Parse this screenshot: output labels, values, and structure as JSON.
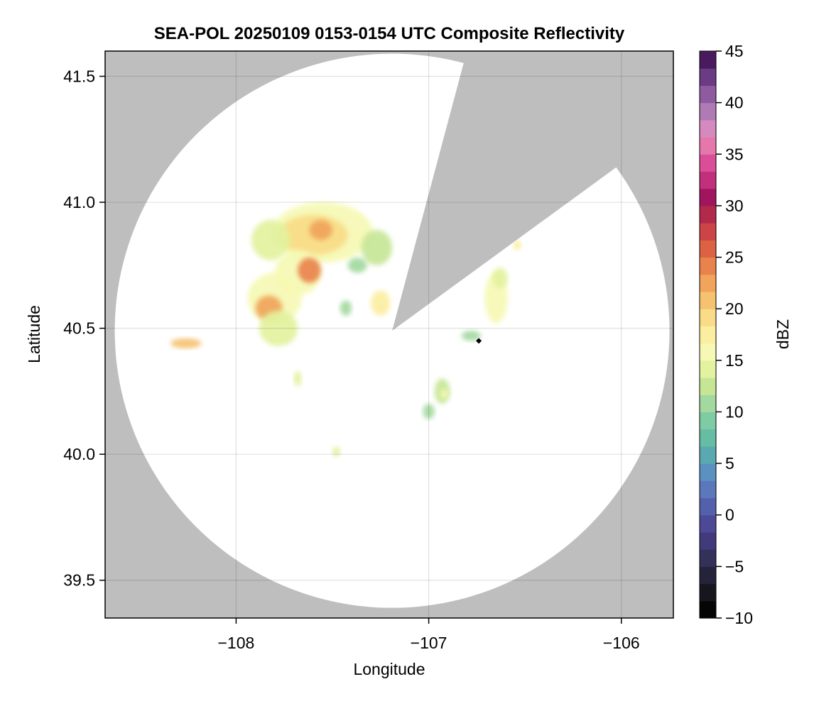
{
  "chart_data": {
    "type": "heatmap",
    "title": "SEA-POL 20250109 0153-0154 UTC Composite Reflectivity",
    "xlabel": "Longitude",
    "ylabel": "Latitude",
    "xlim": [
      -108.68,
      -105.73
    ],
    "ylim": [
      39.35,
      41.6
    ],
    "xticks": [
      -108,
      -107,
      -106
    ],
    "xtick_labels": [
      "−108",
      "−107",
      "−106"
    ],
    "yticks": [
      39.5,
      40.0,
      40.5,
      41.0,
      41.5
    ],
    "ytick_labels": [
      "39.5",
      "40.0",
      "40.5",
      "41.0",
      "41.5"
    ],
    "grid": true,
    "no_data_color": "#bebebe",
    "radar_coverage": {
      "center_lon": -107.19,
      "center_lat": 40.49,
      "range_edge_lon_west": -108.63,
      "range_edge_lat_north": 41.56,
      "blocked_sector_edges": [
        {
          "lon": -106.83,
          "lat": 41.52
        },
        {
          "lon": -106.06,
          "lat": 41.12
        }
      ]
    },
    "colorbar": {
      "label": "dBZ",
      "min": -10,
      "max": 45,
      "ticks": [
        -10,
        -5,
        0,
        5,
        10,
        15,
        20,
        25,
        30,
        35,
        40,
        45
      ],
      "tick_labels": [
        "−10",
        "−5",
        "0",
        "5",
        "10",
        "15",
        "20",
        "25",
        "30",
        "35",
        "40",
        "45"
      ],
      "colors": [
        "#050505",
        "#16161f",
        "#24233a",
        "#33305a",
        "#423a7a",
        "#4c4a97",
        "#5560ad",
        "#5b78bd",
        "#5a91c0",
        "#5aa8b0",
        "#66bda3",
        "#7fcba4",
        "#a3d99f",
        "#c6e696",
        "#e2f29e",
        "#f6f9b4",
        "#fbeea0",
        "#f9dc87",
        "#f5c270",
        "#f0a45c",
        "#e9834d",
        "#dd6244",
        "#cc4445",
        "#b22a4b",
        "#a0155e",
        "#c12f7d",
        "#d94e96",
        "#e577ad",
        "#d48abf",
        "#b07ab5",
        "#8e5b9f",
        "#6b3b86",
        "#4a1a5e"
      ]
    },
    "echoes": [
      {
        "lon": -107.55,
        "lat": 40.88,
        "rlon": 0.26,
        "rlat": 0.12,
        "dbz": 15
      },
      {
        "lon": -107.6,
        "lat": 40.87,
        "rlon": 0.18,
        "rlat": 0.08,
        "dbz": 19
      },
      {
        "lon": -107.56,
        "lat": 40.89,
        "rlon": 0.06,
        "rlat": 0.04,
        "dbz": 23
      },
      {
        "lon": -107.82,
        "lat": 40.85,
        "rlon": 0.1,
        "rlat": 0.08,
        "dbz": 14
      },
      {
        "lon": -107.27,
        "lat": 40.82,
        "rlon": 0.08,
        "rlat": 0.07,
        "dbz": 12
      },
      {
        "lon": -107.37,
        "lat": 40.75,
        "rlon": 0.05,
        "rlat": 0.03,
        "dbz": 10
      },
      {
        "lon": -107.68,
        "lat": 40.72,
        "rlon": 0.12,
        "rlat": 0.09,
        "dbz": 16
      },
      {
        "lon": -107.62,
        "lat": 40.73,
        "rlon": 0.06,
        "rlat": 0.05,
        "dbz": 24
      },
      {
        "lon": -107.8,
        "lat": 40.62,
        "rlon": 0.14,
        "rlat": 0.1,
        "dbz": 16
      },
      {
        "lon": -107.83,
        "lat": 40.58,
        "rlon": 0.07,
        "rlat": 0.05,
        "dbz": 23
      },
      {
        "lon": -107.78,
        "lat": 40.5,
        "rlon": 0.1,
        "rlat": 0.07,
        "dbz": 14
      },
      {
        "lon": -107.25,
        "lat": 40.6,
        "rlon": 0.05,
        "rlat": 0.05,
        "dbz": 17
      },
      {
        "lon": -107.43,
        "lat": 40.58,
        "rlon": 0.03,
        "rlat": 0.03,
        "dbz": 10
      },
      {
        "lon": -108.26,
        "lat": 40.44,
        "rlon": 0.08,
        "rlat": 0.02,
        "dbz": 20
      },
      {
        "lon": -107.68,
        "lat": 40.3,
        "rlon": 0.02,
        "rlat": 0.03,
        "dbz": 14
      },
      {
        "lon": -106.65,
        "lat": 40.62,
        "rlon": 0.06,
        "rlat": 0.1,
        "dbz": 16
      },
      {
        "lon": -106.63,
        "lat": 40.7,
        "rlon": 0.04,
        "rlat": 0.04,
        "dbz": 14
      },
      {
        "lon": -106.54,
        "lat": 40.83,
        "rlon": 0.02,
        "rlat": 0.02,
        "dbz": 18
      },
      {
        "lon": -106.78,
        "lat": 40.47,
        "rlon": 0.05,
        "rlat": 0.02,
        "dbz": 11
      },
      {
        "lon": -106.93,
        "lat": 40.25,
        "rlon": 0.04,
        "rlat": 0.05,
        "dbz": 12
      },
      {
        "lon": -106.92,
        "lat": 40.24,
        "rlon": 0.02,
        "rlat": 0.02,
        "dbz": 16
      },
      {
        "lon": -107.0,
        "lat": 40.17,
        "rlon": 0.03,
        "rlat": 0.03,
        "dbz": 11
      },
      {
        "lon": -107.48,
        "lat": 40.01,
        "rlon": 0.02,
        "rlat": 0.02,
        "dbz": 14
      }
    ],
    "markers": [
      {
        "lon": -106.74,
        "lat": 40.45,
        "shape": "diamond",
        "color": "#000000"
      }
    ]
  }
}
